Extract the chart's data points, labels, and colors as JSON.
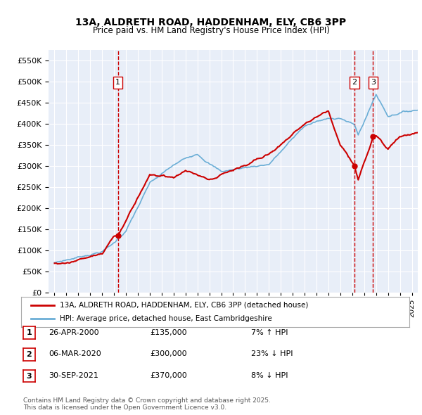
{
  "title1": "13A, ALDRETH ROAD, HADDENHAM, ELY, CB6 3PP",
  "title2": "Price paid vs. HM Land Registry's House Price Index (HPI)",
  "legend_line1": "13A, ALDRETH ROAD, HADDENHAM, ELY, CB6 3PP (detached house)",
  "legend_line2": "HPI: Average price, detached house, East Cambridgeshire",
  "transactions": [
    {
      "label": "1",
      "date": "26-APR-2000",
      "price": 135000,
      "pct": "7%",
      "dir": "↑"
    },
    {
      "label": "2",
      "date": "06-MAR-2020",
      "price": 300000,
      "pct": "23%",
      "dir": "↓"
    },
    {
      "label": "3",
      "date": "30-SEP-2021",
      "price": 370000,
      "pct": "8%",
      "dir": "↓"
    }
  ],
  "transaction_years": [
    2000.32,
    2020.18,
    2021.75
  ],
  "transaction_prices": [
    135000,
    300000,
    370000
  ],
  "footnote": "Contains HM Land Registry data © Crown copyright and database right 2025.\nThis data is licensed under the Open Government Licence v3.0.",
  "hpi_color": "#6baed6",
  "price_color": "#cc0000",
  "vline_color": "#cc0000",
  "background_color": "#e8eef8",
  "ylim": [
    0,
    575000
  ],
  "yticks": [
    0,
    50000,
    100000,
    150000,
    200000,
    250000,
    300000,
    350000,
    400000,
    450000,
    500000,
    550000
  ],
  "xlim": [
    1994.5,
    2025.5
  ]
}
